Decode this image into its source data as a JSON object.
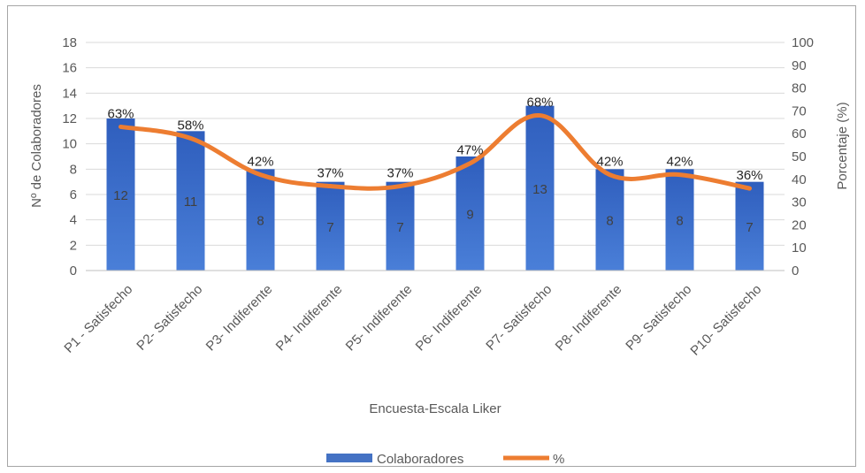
{
  "chart_data": {
    "type": "bar",
    "categories": [
      "P1 - Satisfecho",
      "P2- Satisfecho",
      "P3- Indiferente",
      "P4- Indiferente",
      "P5- Indiferente",
      "P6- Indiferente",
      "P7- Satisfecho",
      "P8- Indiferente",
      "P9- Satisfecho",
      "P10- Satisfecho"
    ],
    "series": [
      {
        "name": "Colaboradores",
        "type": "bar",
        "axis": "left",
        "color": "#4472c4",
        "values": [
          12,
          11,
          8,
          7,
          7,
          9,
          13,
          8,
          8,
          7
        ],
        "labels": [
          "12",
          "11",
          "8",
          "7",
          "7",
          "9",
          "13",
          "8",
          "8",
          "7"
        ]
      },
      {
        "name": "%",
        "type": "line",
        "axis": "right",
        "color": "#ed7d31",
        "values": [
          63,
          58,
          42,
          37,
          37,
          47,
          68,
          42,
          42,
          36
        ],
        "labels": [
          "63%",
          "58%",
          "42%",
          "37%",
          "37%",
          "47%",
          "68%",
          "42%",
          "42%",
          "36%"
        ]
      }
    ],
    "xlabel": "Encuesta-Escala Liker",
    "ylabel": "Nº de Colaboradores",
    "y2label": "Porcentaje (%)",
    "ylim": [
      0,
      18
    ],
    "y2lim": [
      0,
      100
    ],
    "yticks": [
      "0",
      "2",
      "4",
      "6",
      "8",
      "10",
      "12",
      "14",
      "16",
      "18"
    ],
    "y2ticks": [
      "0",
      "10",
      "20",
      "30",
      "40",
      "50",
      "60",
      "70",
      "80",
      "90",
      "100"
    ],
    "grid": true,
    "legend_position": "bottom"
  }
}
